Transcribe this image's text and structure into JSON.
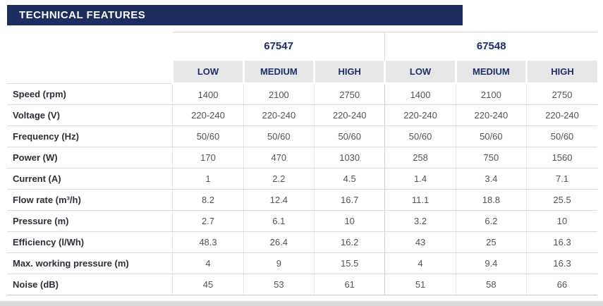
{
  "title": "TECHNICAL FEATURES",
  "table": {
    "groups": [
      {
        "label": "67547",
        "subcolumns": [
          "LOW",
          "MEDIUM",
          "HIGH"
        ]
      },
      {
        "label": "67548",
        "subcolumns": [
          "LOW",
          "MEDIUM",
          "HIGH"
        ]
      }
    ],
    "rows": [
      {
        "label": "Speed (rpm)",
        "values": [
          "1400",
          "2100",
          "2750",
          "1400",
          "2100",
          "2750"
        ]
      },
      {
        "label": "Voltage (V)",
        "values": [
          "220-240",
          "220-240",
          "220-240",
          "220-240",
          "220-240",
          "220-240"
        ]
      },
      {
        "label": "Frequency (Hz)",
        "values": [
          "50/60",
          "50/60",
          "50/60",
          "50/60",
          "50/60",
          "50/60"
        ]
      },
      {
        "label": "Power (W)",
        "values": [
          "170",
          "470",
          "1030",
          "258",
          "750",
          "1560"
        ]
      },
      {
        "label": "Current (A)",
        "values": [
          "1",
          "2.2",
          "4.5",
          "1.4",
          "3.4",
          "7.1"
        ]
      },
      {
        "label": "Flow rate (m³/h)",
        "values": [
          "8.2",
          "12.4",
          "16.7",
          "11.1",
          "18.8",
          "25.5"
        ]
      },
      {
        "label": "Pressure (m)",
        "values": [
          "2.7",
          "6.1",
          "10",
          "3.2",
          "6.2",
          "10"
        ]
      },
      {
        "label": "Efficiency (l/Wh)",
        "values": [
          "48.3",
          "26.4",
          "16.2",
          "43",
          "25",
          "16.3"
        ]
      },
      {
        "label": "Max. working pressure (m)",
        "values": [
          "4",
          "9",
          "15.5",
          "4",
          "9.4",
          "16.3"
        ]
      },
      {
        "label": "Noise (dB)",
        "values": [
          "45",
          "53",
          "61",
          "51",
          "58",
          "66"
        ]
      }
    ]
  },
  "colors": {
    "header_bar": "#1e2c60",
    "header_text": "#ffffff",
    "accent_blue": "#1f2d6b",
    "subheader_bg": "#e7e7e9",
    "row_label_text": "#2e2e38",
    "value_text": "#52525c"
  }
}
